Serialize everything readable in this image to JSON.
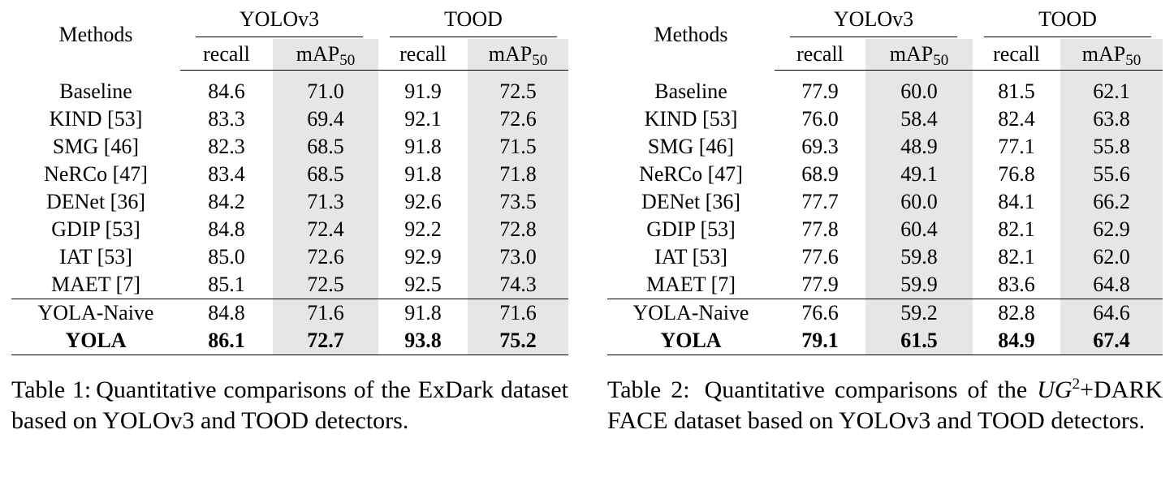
{
  "table1": {
    "methods_header": "Methods",
    "group1": "YOLOv3",
    "group2": "TOOD",
    "sub_recall": "recall",
    "sub_map_base": "mAP",
    "sub_map_sub": "50",
    "rows": [
      {
        "method": "Baseline",
        "y_recall": "84.6",
        "y_map": "71.0",
        "t_recall": "91.9",
        "t_map": "72.5"
      },
      {
        "method": "KIND [53]",
        "y_recall": "83.3",
        "y_map": "69.4",
        "t_recall": "92.1",
        "t_map": "72.6"
      },
      {
        "method": "SMG [46]",
        "y_recall": "82.3",
        "y_map": "68.5",
        "t_recall": "91.8",
        "t_map": "71.5"
      },
      {
        "method": "NeRCo [47]",
        "y_recall": "83.4",
        "y_map": "68.5",
        "t_recall": "91.8",
        "t_map": "71.8"
      },
      {
        "method": "DENet [36]",
        "y_recall": "84.2",
        "y_map": "71.3",
        "t_recall": "92.6",
        "t_map": "73.5"
      },
      {
        "method": "GDIP [53]",
        "y_recall": "84.8",
        "y_map": "72.4",
        "t_recall": "92.2",
        "t_map": "72.8"
      },
      {
        "method": "IAT [53]",
        "y_recall": "85.0",
        "y_map": "72.6",
        "t_recall": "92.9",
        "t_map": "73.0"
      },
      {
        "method": "MAET [7]",
        "y_recall": "85.1",
        "y_map": "72.5",
        "t_recall": "92.5",
        "t_map": "74.3"
      },
      {
        "method": "YOLA-Naive",
        "y_recall": "84.8",
        "y_map": "71.6",
        "t_recall": "91.8",
        "t_map": "71.6"
      },
      {
        "method": "YOLA",
        "y_recall": "86.1",
        "y_map": "72.7",
        "t_recall": "93.8",
        "t_map": "75.2"
      }
    ],
    "caption_label": "Table 1:",
    "caption_text": "Quantitative comparisons of the ExDark dataset based on YOLOv3 and TOOD detectors."
  },
  "table2": {
    "methods_header": "Methods",
    "group1": "YOLOv3",
    "group2": "TOOD",
    "sub_recall": "recall",
    "sub_map_base": "mAP",
    "sub_map_sub": "50",
    "rows": [
      {
        "method": "Baseline",
        "y_recall": "77.9",
        "y_map": "60.0",
        "t_recall": "81.5",
        "t_map": "62.1"
      },
      {
        "method": "KIND [53]",
        "y_recall": "76.0",
        "y_map": "58.4",
        "t_recall": "82.4",
        "t_map": "63.8"
      },
      {
        "method": "SMG [46]",
        "y_recall": "69.3",
        "y_map": "48.9",
        "t_recall": "77.1",
        "t_map": "55.8"
      },
      {
        "method": "NeRCo [47]",
        "y_recall": "68.9",
        "y_map": "49.1",
        "t_recall": "76.8",
        "t_map": "55.6"
      },
      {
        "method": "DENet [36]",
        "y_recall": "77.7",
        "y_map": "60.0",
        "t_recall": "84.1",
        "t_map": "66.2"
      },
      {
        "method": "GDIP [53]",
        "y_recall": "77.8",
        "y_map": "60.4",
        "t_recall": "82.1",
        "t_map": "62.9"
      },
      {
        "method": "IAT [53]",
        "y_recall": "77.6",
        "y_map": "59.8",
        "t_recall": "82.1",
        "t_map": "62.0"
      },
      {
        "method": "MAET [7]",
        "y_recall": "77.9",
        "y_map": "59.9",
        "t_recall": "83.6",
        "t_map": "64.8"
      },
      {
        "method": "YOLA-Naive",
        "y_recall": "76.6",
        "y_map": "59.2",
        "t_recall": "82.8",
        "t_map": "64.6"
      },
      {
        "method": "YOLA",
        "y_recall": "79.1",
        "y_map": "61.5",
        "t_recall": "84.9",
        "t_map": "67.4"
      }
    ],
    "caption_label": "Table 2:",
    "caption_ug": "UG",
    "caption_ug_sup": "2",
    "caption_text": "+DARK FACE dataset based on YOLOv3 and TOOD detectors.",
    "caption_prefix": "Quantitative comparisons of the"
  }
}
